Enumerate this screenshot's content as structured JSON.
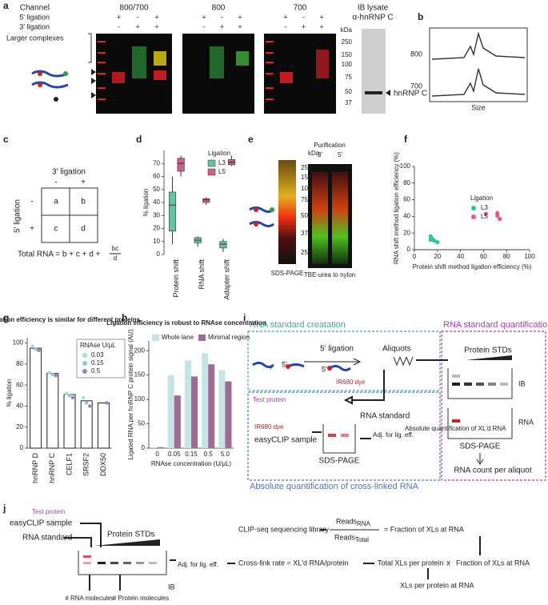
{
  "figure": {
    "a": {
      "label": "a",
      "channel": "Channel",
      "channels": [
        "800/700",
        "800",
        "700"
      ],
      "lig5": "5' ligation",
      "lig3": "3' ligation",
      "signs5": [
        "+",
        "-",
        "+"
      ],
      "signs3": [
        "-",
        "+",
        "+"
      ],
      "larger": "Larger complexes",
      "kda": "kDa",
      "markers": [
        250,
        150,
        100,
        75,
        50,
        37
      ],
      "ib": "IB lysate",
      "ab": "α-hnRNP C",
      "protein": "hnRNP C"
    },
    "b": {
      "label": "b",
      "ch1": "800",
      "ch2": "700",
      "x": "Size"
    },
    "c": {
      "label": "c",
      "col": "3' ligation",
      "colsigns": [
        "-",
        "+"
      ],
      "row": "5' ligation",
      "rowsigns": [
        "-",
        "+"
      ],
      "cells": [
        "a",
        "b",
        "c",
        "d"
      ],
      "formula": "Total RNA = b + c + d +",
      "num": "bc",
      "den": "d"
    },
    "d": {
      "label": "d"
    },
    "e": {
      "label": "e",
      "kda": "kDa",
      "markers": [
        250,
        150,
        100,
        75,
        50,
        37,
        25
      ],
      "gel1": "SDS-PAGE",
      "purif": "Purification",
      "lanes": [
        "3'",
        "5'"
      ],
      "gel2": "TBE-urea to nylon"
    },
    "f": {
      "label": "f"
    },
    "g": {
      "label": "g"
    },
    "h": {
      "label": "h"
    },
    "i": {
      "label": "i",
      "creation": "RNA standard creatation",
      "quant": "RNA standard quantification",
      "lig": "5' ligation",
      "aliquots": "Aliquots",
      "five1": "5'",
      "plus": "+",
      "five2": "5'",
      "dye1": "IR680 dye",
      "stds": "Protein STDs",
      "ib": "IB",
      "rna": "RNA",
      "sds1": "SDS-PAGE",
      "count": "RNA count per aliquot",
      "test": "Test protein",
      "dye2": "IR680 dye",
      "standard": "RNA standard",
      "sample": "easyCLIP sample",
      "sds2": "SDS-PAGE",
      "adj": "Adj. for lig. eff.",
      "absq": "Absolute quantification of XL'd RNA",
      "absx": "Absolute quantification of cross-linked RNA"
    },
    "j": {
      "label": "j",
      "test": "Test protein",
      "sample": "easyCLIP sample",
      "standard": "RNA standard",
      "stds": "Protein STDs",
      "adj": "Adj. for lig. eff.",
      "ib": "IB",
      "nrna": "# RNA molecules",
      "nprot": "# Protein molecules",
      "lib": "CLIP-seq sequencing library",
      "reads1": "Reads",
      "sub1": "RNA",
      "reads2": "Reads",
      "sub2": "Total",
      "frac": "= Fraction of XLs at RNA",
      "rate": "Cross-link rate = XL'd RNA/protein",
      "total": "Total XLs per protein",
      "times": "x",
      "frac2": "Fraction of XLs at RNA",
      "result": "XLs per protein at RNA"
    }
  },
  "chart_data": [
    {
      "type": "box",
      "ylabel": "% ligation",
      "ylim": [
        0,
        80
      ],
      "yticks": [
        0,
        10,
        20,
        30,
        40,
        50,
        60,
        70
      ],
      "categories": [
        "Protein shift",
        "RNA shift",
        "Adapter shift"
      ],
      "legend_title": "Ligation",
      "series": [
        {
          "name": "L3",
          "color": "#66c2a5",
          "values": [
            [
              8,
              18,
              38,
              48,
              60
            ],
            [
              6,
              9,
              11,
              13,
              14
            ],
            [
              2,
              5,
              8,
              10,
              12
            ]
          ]
        },
        {
          "name": "L5",
          "color": "#d0607f",
          "values": [
            [
              60,
              64,
              70,
              74,
              76
            ],
            [
              38,
              40,
              42,
              43,
              44
            ],
            [
              68,
              69,
              71,
              73,
              76
            ]
          ]
        }
      ]
    },
    {
      "type": "scatter",
      "ylabel": "RNA shift method ligation efficiency (%)",
      "xlabel": "Protein shift method ligation efficiency (%)",
      "xlim": [
        0,
        100
      ],
      "ylim": [
        0,
        100
      ],
      "xticks": [
        0,
        20,
        40,
        60,
        80,
        100
      ],
      "yticks": [
        0,
        20,
        40,
        60,
        80,
        100
      ],
      "legend_title": "Ligation",
      "series": [
        {
          "name": "L3",
          "color": "#2ec4a0",
          "x": [
            14,
            15,
            17,
            20,
            14
          ],
          "values": [
            16,
            14,
            11,
            9,
            12
          ]
        },
        {
          "name": "L5",
          "color": "#f0557a",
          "x": [
            62,
            72,
            74,
            72
          ],
          "values": [
            43,
            41,
            37,
            44
          ]
        }
      ]
    },
    {
      "type": "bar",
      "title": "Ligation efficiency is similar for different proteins",
      "ylabel": "% ligation",
      "ylim": [
        0,
        105
      ],
      "yticks": [
        0,
        20,
        40,
        60,
        80,
        100
      ],
      "categories": [
        "hnRNP D",
        "hnRNP C",
        "CELF1",
        "SRSF2",
        "DDX50"
      ],
      "values": [
        95,
        71,
        51,
        45,
        43
      ],
      "color": "#ffffff",
      "legend_title": "RNAse U/μL",
      "points": [
        {
          "name": "0.03",
          "color": "#a8ded8",
          "values": [
            97,
            72,
            52,
            48,
            null
          ]
        },
        {
          "name": "0.15",
          "color": "#8cc6d8",
          "values": [
            94,
            70,
            50,
            43,
            null
          ]
        },
        {
          "name": "0.5",
          "color": "#8a86c8",
          "values": [
            93,
            69,
            48,
            40,
            43
          ]
        }
      ]
    },
    {
      "type": "grouped_bar",
      "title": "Ligation efficiency is robust to RNAse concentration",
      "ylabel": "Ligated RNA per hnRNP C protein signal (AU)",
      "xlabel": "RNAse concentration (U/μL)",
      "ylim": [
        0,
        220
      ],
      "yticks": [
        0,
        50,
        100,
        150,
        200
      ],
      "categories": [
        "0",
        "0.05",
        "0.15",
        "0.5",
        "5.0"
      ],
      "series": [
        {
          "name": "Whole lane",
          "color": "#c6e4e6",
          "values": [
            2,
            150,
            180,
            195,
            160
          ]
        },
        {
          "name": "Minimal region",
          "color": "#9d6b93",
          "values": [
            2,
            108,
            147,
            172,
            137
          ]
        }
      ]
    }
  ]
}
